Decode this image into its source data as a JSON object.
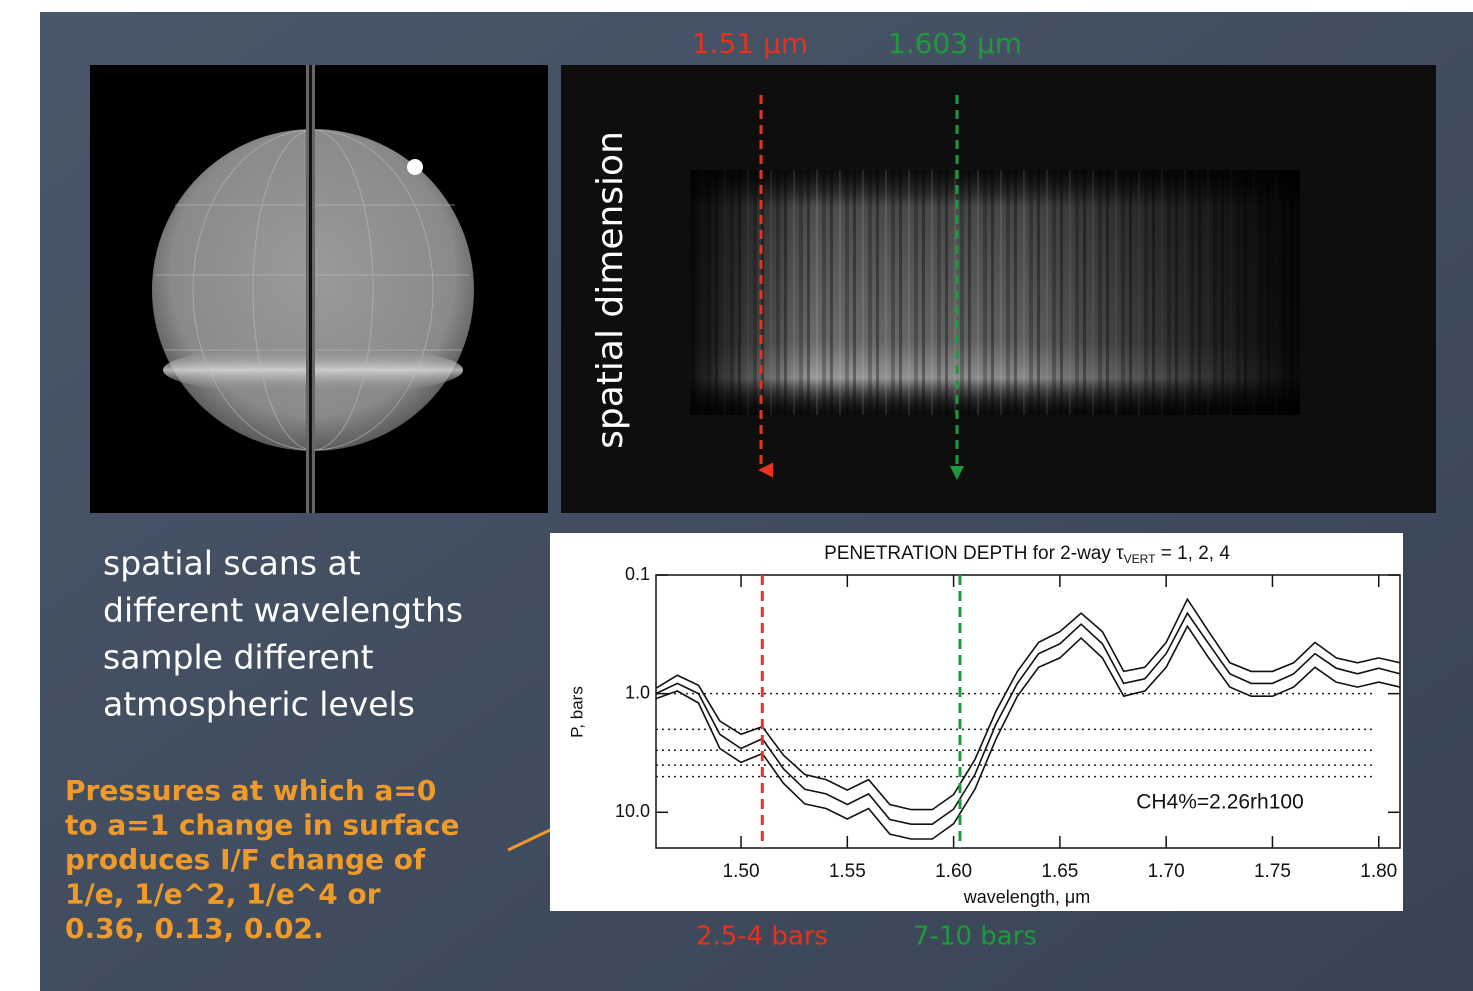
{
  "slide": {
    "marker_red": "1.51 μm",
    "marker_green": "1.603 μm",
    "spatial_label": "spatial dimension",
    "caption_lines": [
      "spatial scans at",
      "different wavelengths",
      "sample different",
      "atmospheric levels"
    ],
    "note_lines": [
      "Pressures at which a=0",
      "to a=1 change in surface",
      "produces I/F change of",
      "1/e, 1/e^2, 1/e^4 or",
      "0.36, 0.13, 0.02."
    ],
    "bars_red": "2.5-4 bars",
    "bars_green": "7-10 bars"
  },
  "chart_data": {
    "type": "line",
    "title_prefix": "PENETRATION DEPTH for 2-way τ",
    "title_subscript": "VERT",
    "title_suffix": " = 1, 2, 4",
    "x_label": "wavelength, μm",
    "y_label": "P, bars",
    "annotation": "CH4%=2.26rh100",
    "yscale": "log",
    "invert_y": true,
    "xlim": [
      1.46,
      1.81
    ],
    "ylim": [
      0.1,
      20
    ],
    "xticks": [
      {
        "value": 1.5,
        "label": "1.50"
      },
      1.55,
      {
        "value": 1.6,
        "label": "1.60"
      },
      1.65,
      {
        "value": 1.7,
        "label": "1.70"
      },
      1.75,
      {
        "value": 1.8,
        "label": "1.80"
      }
    ],
    "yticks": [
      0.1,
      {
        "value": 1,
        "label": "1.0"
      },
      {
        "value": 10,
        "label": "10.0"
      }
    ],
    "hlines": [
      1,
      2,
      3,
      4,
      5
    ],
    "vlines": [
      {
        "x": 1.51,
        "color": "#e8321e"
      },
      {
        "x": 1.603,
        "color": "#1e9a3c"
      }
    ],
    "x": [
      1.46,
      1.47,
      1.48,
      1.49,
      1.5,
      1.51,
      1.52,
      1.53,
      1.54,
      1.55,
      1.56,
      1.57,
      1.58,
      1.59,
      1.6,
      1.61,
      1.62,
      1.63,
      1.64,
      1.65,
      1.66,
      1.67,
      1.68,
      1.69,
      1.7,
      1.71,
      1.72,
      1.73,
      1.74,
      1.75,
      1.76,
      1.77,
      1.78,
      1.79,
      1.8,
      1.81
    ],
    "series": [
      {
        "color": "#111111",
        "values": [
          0.9,
          0.7,
          0.85,
          1.7,
          2.2,
          1.9,
          3.3,
          4.8,
          5.3,
          6.5,
          5.3,
          8.6,
          9.5,
          9.5,
          7.1,
          3.6,
          1.4,
          0.65,
          0.37,
          0.3,
          0.21,
          0.3,
          0.65,
          0.6,
          0.37,
          0.16,
          0.3,
          0.55,
          0.65,
          0.65,
          0.55,
          0.37,
          0.5,
          0.55,
          0.5,
          0.55
        ]
      },
      {
        "color": "#111111",
        "values": [
          1.0,
          0.82,
          1.0,
          2.2,
          2.9,
          2.4,
          4.3,
          6.4,
          7.0,
          8.6,
          7.0,
          11.5,
          12.6,
          12.6,
          9.4,
          4.8,
          1.8,
          0.82,
          0.46,
          0.38,
          0.26,
          0.38,
          0.82,
          0.75,
          0.46,
          0.21,
          0.38,
          0.68,
          0.82,
          0.82,
          0.68,
          0.46,
          0.61,
          0.68,
          0.61,
          0.68
        ]
      },
      {
        "color": "#111111",
        "values": [
          1.1,
          0.95,
          1.2,
          2.9,
          3.8,
          3.2,
          5.7,
          8.5,
          9.3,
          11.4,
          9.3,
          15.3,
          16.8,
          16.8,
          12.5,
          6.4,
          2.4,
          1.05,
          0.6,
          0.5,
          0.34,
          0.5,
          1.05,
          0.95,
          0.6,
          0.27,
          0.5,
          0.88,
          1.05,
          1.05,
          0.88,
          0.6,
          0.8,
          0.88,
          0.8,
          0.88
        ]
      }
    ]
  }
}
